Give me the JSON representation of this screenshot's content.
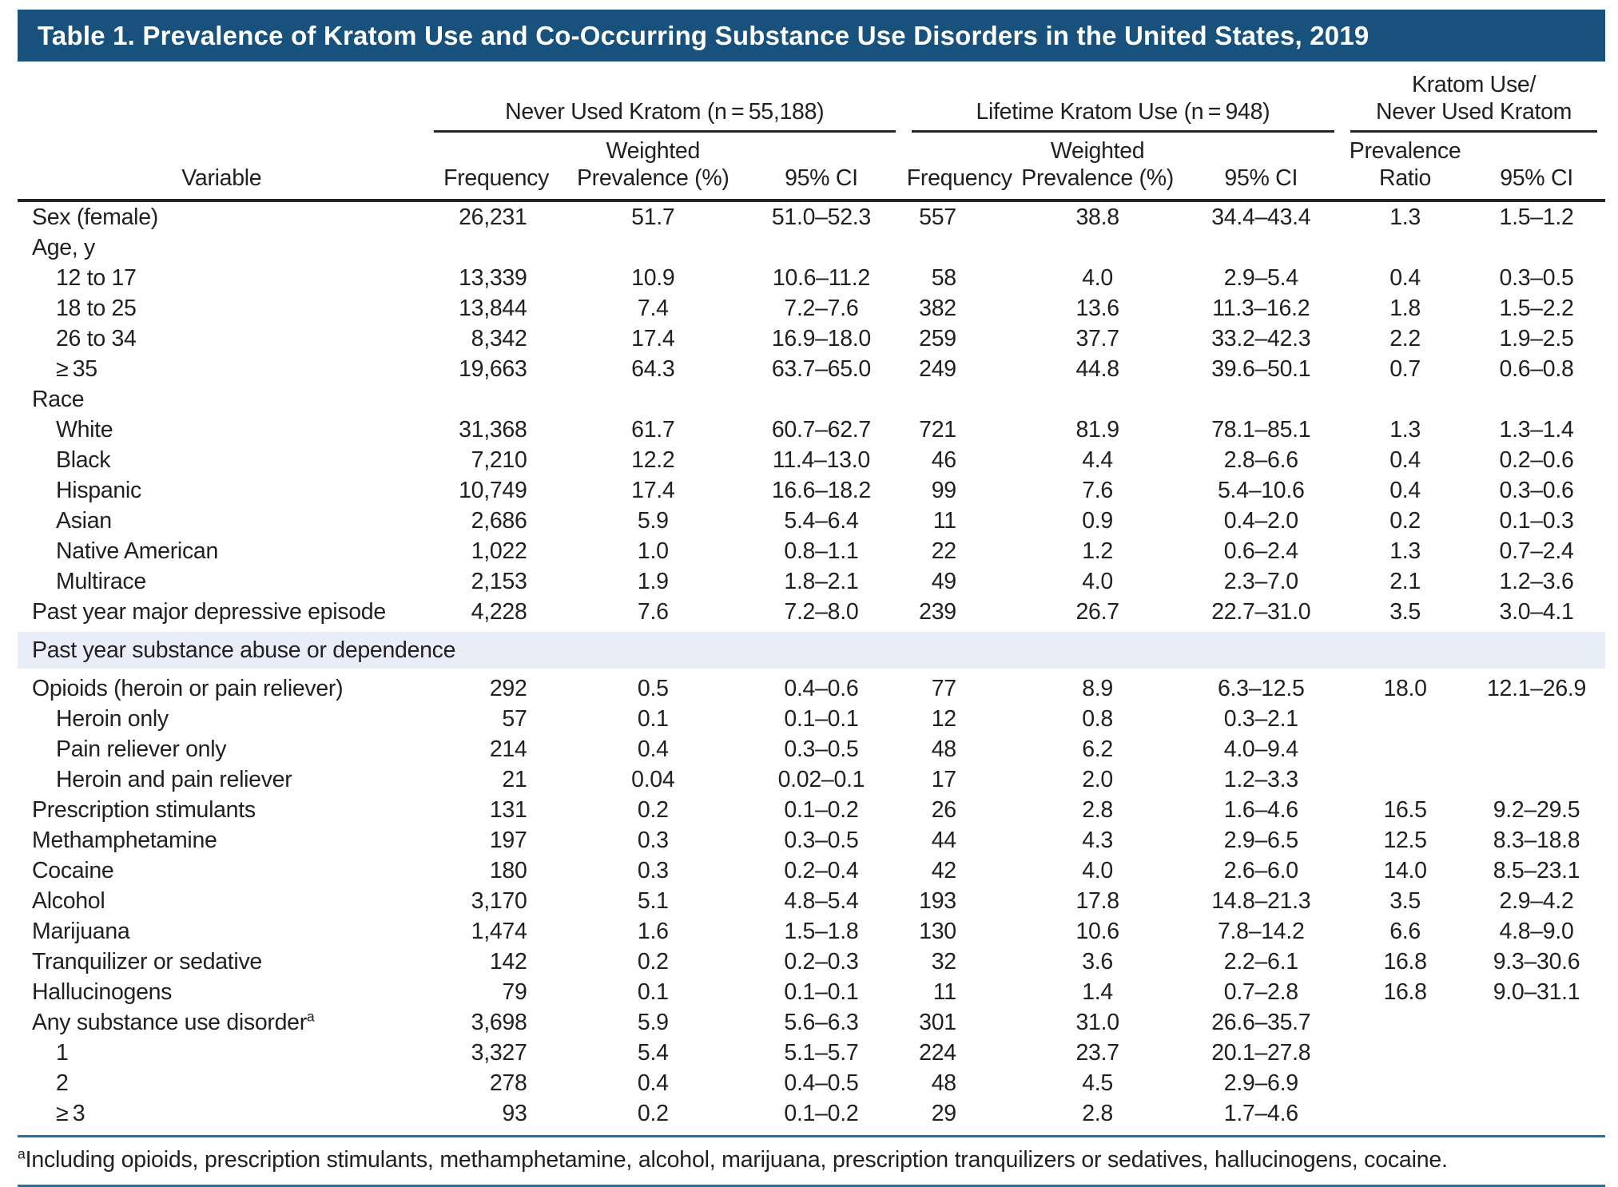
{
  "page": {
    "title": "Table 1. Prevalence of Kratom Use and Co-Occurring Substance Use Disorders in the United States, 2019"
  },
  "colors": {
    "title_bar": "#17517C",
    "section_band": "#E9EDF8",
    "rule_teal": "#1E73A1",
    "rule_dark": "#262626",
    "text": "#231F20",
    "title_text": "#FFFFFF"
  },
  "header": {
    "variable": "Variable",
    "groups": [
      {
        "label": "Never Used Kratom (n = 55,188)"
      },
      {
        "label": "Lifetime Kratom Use (n = 948)"
      },
      {
        "line1": "Kratom Use/",
        "line2": "Never Used Kratom"
      }
    ],
    "columns": [
      {
        "l1": "",
        "l2": "Frequency"
      },
      {
        "l1": "Weighted",
        "l2": "Prevalence (%)"
      },
      {
        "l1": "",
        "l2": "95% CI"
      },
      {
        "l1": "",
        "l2": "Frequency"
      },
      {
        "l1": "Weighted",
        "l2": "Prevalence (%)"
      },
      {
        "l1": "",
        "l2": "95% CI"
      },
      {
        "l1": "Prevalence",
        "l2": "Ratio"
      },
      {
        "l1": "",
        "l2": "95% CI"
      }
    ]
  },
  "rows": [
    {
      "label": "Sex (female)",
      "indent": 0,
      "cells": [
        "26,231",
        "51.7",
        "51.0–52.3",
        "557",
        "38.8",
        "34.4–43.4",
        "1.3",
        "1.5–1.2"
      ]
    },
    {
      "label": "Age, y",
      "indent": 0,
      "cells": [
        "",
        "",
        "",
        "",
        "",
        "",
        "",
        ""
      ]
    },
    {
      "label": "12 to 17",
      "indent": 1,
      "cells": [
        "13,339",
        "10.9",
        "10.6–11.2",
        "58",
        "4.0",
        "2.9–5.4",
        "0.4",
        "0.3–0.5"
      ]
    },
    {
      "label": "18 to 25",
      "indent": 1,
      "cells": [
        "13,844",
        "7.4",
        "7.2–7.6",
        "382",
        "13.6",
        "11.3–16.2",
        "1.8",
        "1.5–2.2"
      ]
    },
    {
      "label": "26 to 34",
      "indent": 1,
      "cells": [
        "8,342",
        "17.4",
        "16.9–18.0",
        "259",
        "37.7",
        "33.2–42.3",
        "2.2",
        "1.9–2.5"
      ]
    },
    {
      "label": "≥ 35",
      "indent": 1,
      "cells": [
        "19,663",
        "64.3",
        "63.7–65.0",
        "249",
        "44.8",
        "39.6–50.1",
        "0.7",
        "0.6–0.8"
      ]
    },
    {
      "label": "Race",
      "indent": 0,
      "cells": [
        "",
        "",
        "",
        "",
        "",
        "",
        "",
        ""
      ]
    },
    {
      "label": "White",
      "indent": 1,
      "cells": [
        "31,368",
        "61.7",
        "60.7–62.7",
        "721",
        "81.9",
        "78.1–85.1",
        "1.3",
        "1.3–1.4"
      ]
    },
    {
      "label": "Black",
      "indent": 1,
      "cells": [
        "7,210",
        "12.2",
        "11.4–13.0",
        "46",
        "4.4",
        "2.8–6.6",
        "0.4",
        "0.2–0.6"
      ]
    },
    {
      "label": "Hispanic",
      "indent": 1,
      "cells": [
        "10,749",
        "17.4",
        "16.6–18.2",
        "99",
        "7.6",
        "5.4–10.6",
        "0.4",
        "0.3–0.6"
      ]
    },
    {
      "label": "Asian",
      "indent": 1,
      "cells": [
        "2,686",
        "5.9",
        "5.4–6.4",
        "11",
        "0.9",
        "0.4–2.0",
        "0.2",
        "0.1–0.3"
      ]
    },
    {
      "label": "Native American",
      "indent": 1,
      "cells": [
        "1,022",
        "1.0",
        "0.8–1.1",
        "22",
        "1.2",
        "0.6–2.4",
        "1.3",
        "0.7–2.4"
      ]
    },
    {
      "label": "Multirace",
      "indent": 1,
      "cells": [
        "2,153",
        "1.9",
        "1.8–2.1",
        "49",
        "4.0",
        "2.3–7.0",
        "2.1",
        "1.2–3.6"
      ]
    },
    {
      "label": "Past year major depressive episode",
      "indent": 0,
      "cells": [
        "4,228",
        "7.6",
        "7.2–8.0",
        "239",
        "26.7",
        "22.7–31.0",
        "3.5",
        "3.0–4.1"
      ]
    },
    {
      "label": "Past year substance abuse or dependence",
      "section": true
    },
    {
      "label": "Opioids (heroin or pain reliever)",
      "indent": 0,
      "cells": [
        "292",
        "0.5",
        "0.4–0.6",
        "77",
        "8.9",
        "6.3–12.5",
        "18.0",
        "12.1–26.9"
      ]
    },
    {
      "label": "Heroin only",
      "indent": 1,
      "cells": [
        "57",
        "0.1",
        "0.1–0.1",
        "12",
        "0.8",
        "0.3–2.1",
        "",
        ""
      ]
    },
    {
      "label": "Pain reliever only",
      "indent": 1,
      "cells": [
        "214",
        "0.4",
        "0.3–0.5",
        "48",
        "6.2",
        "4.0–9.4",
        "",
        ""
      ]
    },
    {
      "label": "Heroin and pain reliever",
      "indent": 1,
      "cells": [
        "21",
        "0.04",
        "0.02–0.1",
        "17",
        "2.0",
        "1.2–3.3",
        "",
        ""
      ]
    },
    {
      "label": "Prescription stimulants",
      "indent": 0,
      "cells": [
        "131",
        "0.2",
        "0.1–0.2",
        "26",
        "2.8",
        "1.6–4.6",
        "16.5",
        "9.2–29.5"
      ]
    },
    {
      "label": "Methamphetamine",
      "indent": 0,
      "cells": [
        "197",
        "0.3",
        "0.3–0.5",
        "44",
        "4.3",
        "2.9–6.5",
        "12.5",
        "8.3–18.8"
      ]
    },
    {
      "label": "Cocaine",
      "indent": 0,
      "cells": [
        "180",
        "0.3",
        "0.2–0.4",
        "42",
        "4.0",
        "2.6–6.0",
        "14.0",
        "8.5–23.1"
      ]
    },
    {
      "label": "Alcohol",
      "indent": 0,
      "cells": [
        "3,170",
        "5.1",
        "4.8–5.4",
        "193",
        "17.8",
        "14.8–21.3",
        "3.5",
        "2.9–4.2"
      ]
    },
    {
      "label": "Marijuana",
      "indent": 0,
      "cells": [
        "1,474",
        "1.6",
        "1.5–1.8",
        "130",
        "10.6",
        "7.8–14.2",
        "6.6",
        "4.8–9.0"
      ]
    },
    {
      "label": "Tranquilizer or sedative",
      "indent": 0,
      "cells": [
        "142",
        "0.2",
        "0.2–0.3",
        "32",
        "3.6",
        "2.2–6.1",
        "16.8",
        "9.3–30.6"
      ]
    },
    {
      "label": "Hallucinogens",
      "indent": 0,
      "cells": [
        "79",
        "0.1",
        "0.1–0.1",
        "11",
        "1.4",
        "0.7–2.8",
        "16.8",
        "9.0–31.1"
      ]
    },
    {
      "label": "Any substance use disorder",
      "sup": "a",
      "indent": 0,
      "cells": [
        "3,698",
        "5.9",
        "5.6–6.3",
        "301",
        "31.0",
        "26.6–35.7",
        "",
        ""
      ]
    },
    {
      "label": "1",
      "indent": 1,
      "cells": [
        "3,327",
        "5.4",
        "5.1–5.7",
        "224",
        "23.7",
        "20.1–27.8",
        "",
        ""
      ]
    },
    {
      "label": "2",
      "indent": 1,
      "cells": [
        "278",
        "0.4",
        "0.4–0.5",
        "48",
        "4.5",
        "2.9–6.9",
        "",
        ""
      ]
    },
    {
      "label": "≥ 3",
      "indent": 1,
      "cells": [
        "93",
        "0.2",
        "0.1–0.2",
        "29",
        "2.8",
        "1.7–4.6",
        "",
        ""
      ]
    }
  ],
  "footnote": {
    "sup": "a",
    "text": "Including opioids, prescription stimulants, methamphetamine, alcohol, marijuana, prescription tranquilizers or sedatives, hallucinogens, cocaine."
  }
}
